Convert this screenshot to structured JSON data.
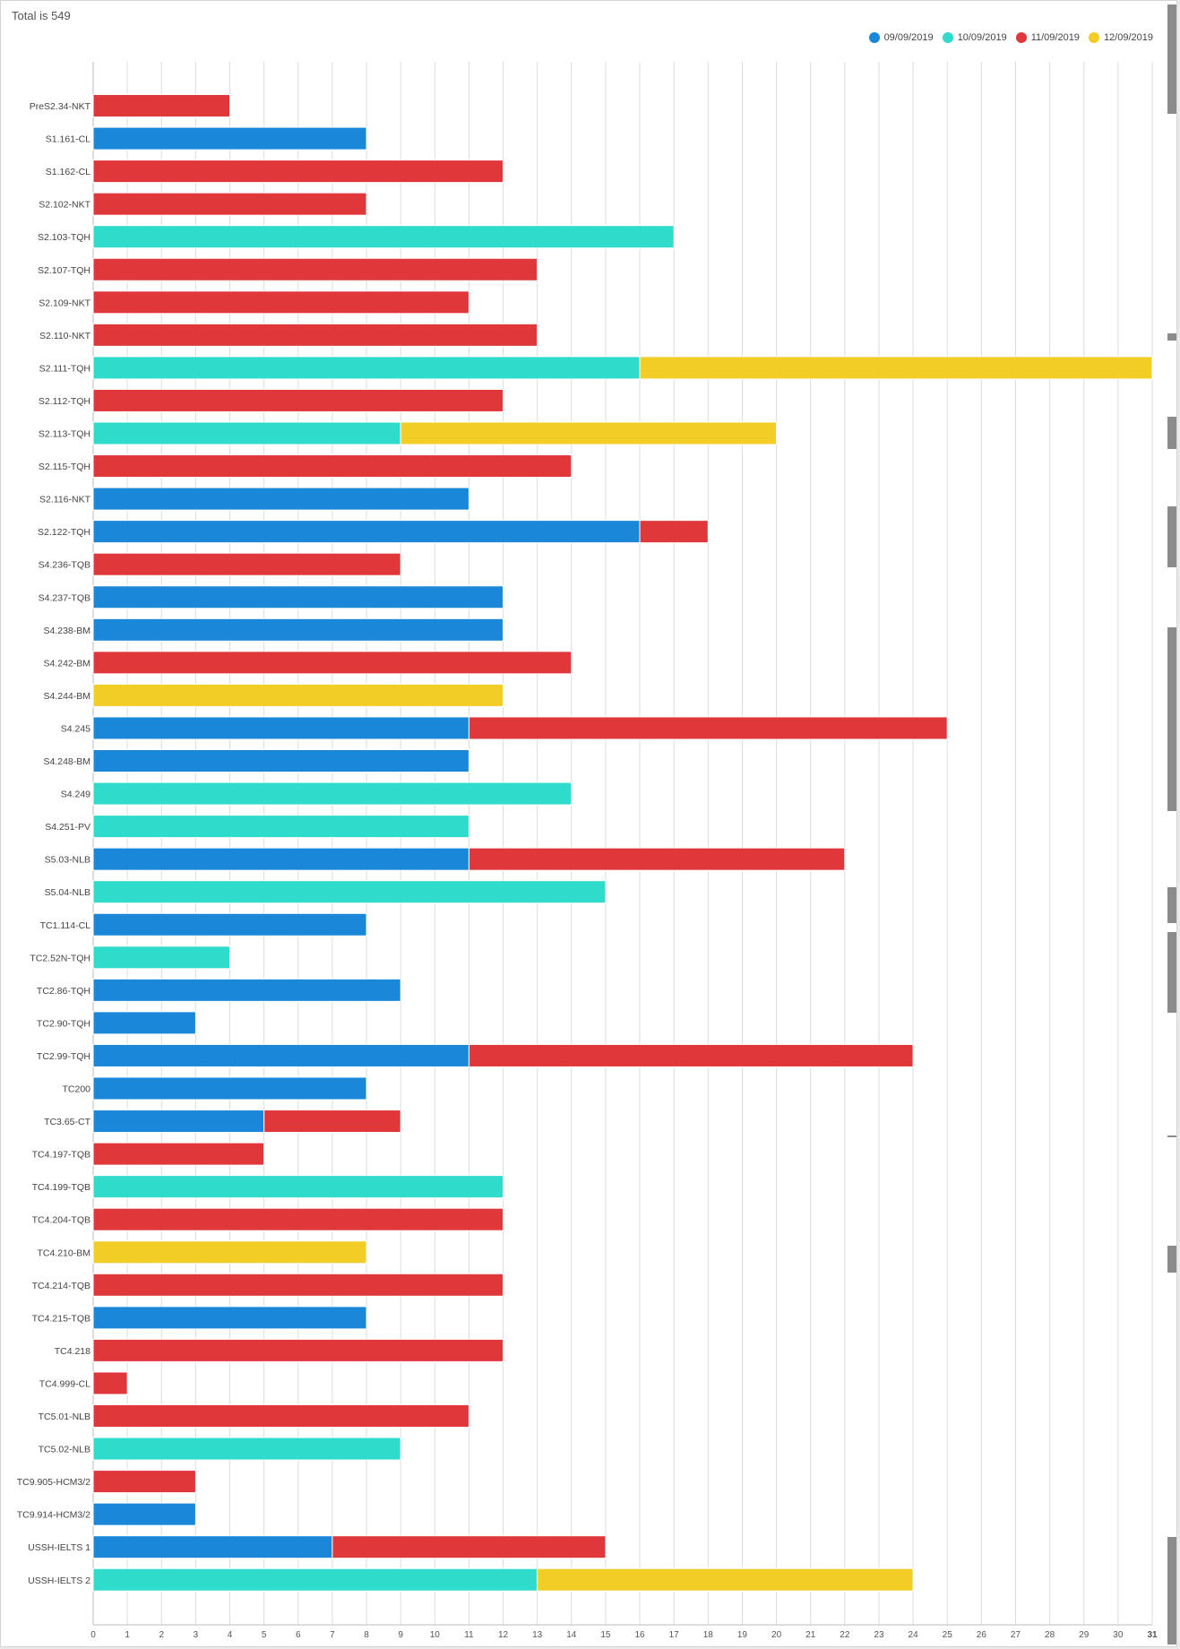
{
  "header": {
    "total_label": "Total is 549"
  },
  "legend": [
    {
      "label": "09/09/2019",
      "color": "#1a87d8"
    },
    {
      "label": "10/09/2019",
      "color": "#2fdbcb"
    },
    {
      "label": "11/09/2019",
      "color": "#e0373a"
    },
    {
      "label": "12/09/2019",
      "color": "#f2cd26"
    }
  ],
  "chart_data": {
    "type": "bar",
    "orientation": "horizontal",
    "stacked": true,
    "grid": true,
    "legend_position": "top-right",
    "xlim": [
      0,
      31
    ],
    "x_ticks": [
      "0",
      "1",
      "2",
      "3",
      "4",
      "5",
      "6",
      "7",
      "8",
      "9",
      "10",
      "11",
      "12",
      "13",
      "14",
      "15",
      "16",
      "17",
      "18",
      "19",
      "20",
      "21",
      "22",
      "23",
      "24",
      "25",
      "26",
      "27",
      "28",
      "29",
      "30",
      "31"
    ],
    "categories": [
      "PreS2.34-NKT",
      "S1.161-CL",
      "S1.162-CL",
      "S2.102-NKT",
      "S2.103-TQH",
      "S2.107-TQH",
      "S2.109-NKT",
      "S2.110-NKT",
      "S2.111-TQH",
      "S2.112-TQH",
      "S2.113-TQH",
      "S2.115-TQH",
      "S2.116-NKT",
      "S2.122-TQH",
      "S4.236-TQB",
      "S4.237-TQB",
      "S4.238-BM",
      "S4.242-BM",
      "S4.244-BM",
      "S4.245",
      "S4.248-BM",
      "S4.249",
      "S4.251-PV",
      "S5.03-NLB",
      "S5.04-NLB",
      "TC1.114-CL",
      "TC2.52N-TQH",
      "TC2.86-TQH",
      "TC2.90-TQH",
      "TC2.99-TQH",
      "TC200",
      "TC3.65-CT",
      "TC4.197-TQB",
      "TC4.199-TQB",
      "TC4.204-TQB",
      "TC4.210-BM",
      "TC4.214-TQB",
      "TC4.215-TQB",
      "TC4.218",
      "TC4.999-CL",
      "TC5.01-NLB",
      "TC5.02-NLB",
      "TC9.905-HCM3/2",
      "TC9.914-HCM3/2",
      "USSH-IELTS 1",
      "USSH-IELTS 2"
    ],
    "series": [
      {
        "name": "09/09/2019",
        "color": "#1a87d8",
        "values": [
          0,
          8,
          0,
          0,
          0,
          0,
          0,
          0,
          0,
          0,
          0,
          0,
          11,
          16,
          0,
          12,
          12,
          0,
          0,
          11,
          11,
          0,
          0,
          11,
          0,
          8,
          0,
          9,
          3,
          11,
          8,
          5,
          0,
          0,
          0,
          0,
          0,
          8,
          0,
          0,
          0,
          0,
          0,
          3,
          7,
          0
        ]
      },
      {
        "name": "10/09/2019",
        "color": "#2fdbcb",
        "values": [
          0,
          0,
          0,
          0,
          17,
          0,
          0,
          0,
          16,
          0,
          9,
          0,
          0,
          0,
          0,
          0,
          0,
          0,
          0,
          0,
          0,
          14,
          11,
          0,
          15,
          0,
          4,
          0,
          0,
          0,
          0,
          0,
          0,
          12,
          0,
          0,
          0,
          0,
          0,
          0,
          0,
          9,
          0,
          0,
          0,
          13
        ]
      },
      {
        "name": "11/09/2019",
        "color": "#e0373a",
        "values": [
          4,
          0,
          12,
          8,
          0,
          13,
          11,
          13,
          0,
          12,
          0,
          14,
          0,
          2,
          9,
          0,
          0,
          14,
          0,
          14,
          0,
          0,
          0,
          11,
          0,
          0,
          0,
          0,
          0,
          13,
          0,
          4,
          5,
          0,
          12,
          0,
          12,
          0,
          12,
          1,
          11,
          0,
          3,
          0,
          8,
          0
        ]
      },
      {
        "name": "12/09/2019",
        "color": "#f2cd26",
        "values": [
          0,
          0,
          0,
          0,
          0,
          0,
          0,
          0,
          15,
          0,
          11,
          0,
          0,
          0,
          0,
          0,
          0,
          0,
          12,
          0,
          0,
          0,
          0,
          0,
          0,
          0,
          0,
          0,
          0,
          0,
          0,
          0,
          0,
          0,
          0,
          8,
          0,
          0,
          0,
          0,
          0,
          0,
          0,
          0,
          0,
          11
        ]
      }
    ]
  }
}
